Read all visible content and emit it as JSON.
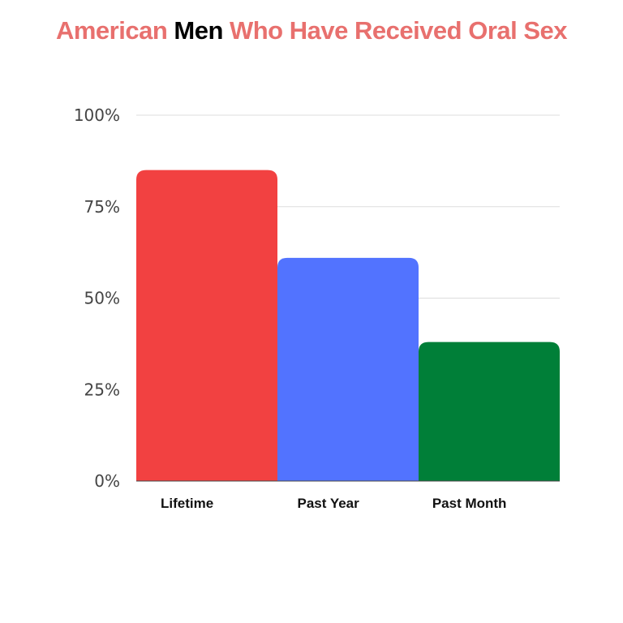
{
  "title": {
    "part1": "American ",
    "part2": "Men",
    "part3": " Who Have Received Oral Sex"
  },
  "colors": {
    "title": "#e8706e",
    "title_highlight": "#000000",
    "grid": "#dddddd",
    "axis": "#444444"
  },
  "chart_data": {
    "type": "bar",
    "categories": [
      "Lifetime",
      "Past Year",
      "Past Month"
    ],
    "values": [
      85,
      61,
      38
    ],
    "bar_colors": [
      "#f24141",
      "#5273ff",
      "#007f38"
    ],
    "ylim": [
      0,
      100
    ],
    "yticks": [
      0,
      25,
      50,
      75,
      100
    ],
    "ytick_labels": [
      "0%",
      "25%",
      "50%",
      "75%",
      "100%"
    ],
    "grid": true
  }
}
